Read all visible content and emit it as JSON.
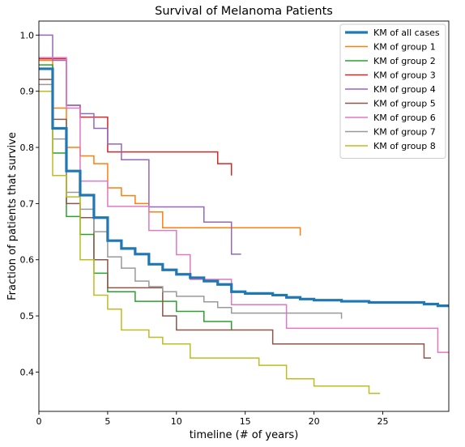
{
  "chart_data": {
    "type": "line",
    "step": true,
    "title": "Survival of Melanoma Patients",
    "xlabel": "timeline (# of years)",
    "ylabel": "Fraction of patients that survive",
    "xlim": [
      0,
      29.8
    ],
    "ylim": [
      0.33,
      1.025
    ],
    "xticks": [
      0,
      5,
      10,
      15,
      20,
      25
    ],
    "yticks": [
      0.4,
      0.5,
      0.6,
      0.7,
      0.8,
      0.9,
      1.0
    ],
    "xtick_labels": [
      "0",
      "5",
      "10",
      "15",
      "20",
      "25"
    ],
    "ytick_labels": [
      "0.4",
      "0.5",
      "0.6",
      "0.7",
      "0.8",
      "0.9",
      "1.0"
    ],
    "grid": false,
    "legend_position": "top-right",
    "series": [
      {
        "name": "KM of all cases",
        "color": "#1f77b4",
        "emphasis": true,
        "x": [
          0,
          1,
          2,
          3,
          4,
          5,
          6,
          7,
          8,
          9,
          10,
          11,
          12,
          13,
          14,
          15,
          17,
          18,
          19,
          20,
          22,
          24,
          28,
          29,
          29.8
        ],
        "y": [
          0.94,
          0.834,
          0.758,
          0.715,
          0.675,
          0.634,
          0.62,
          0.61,
          0.592,
          0.582,
          0.574,
          0.568,
          0.562,
          0.556,
          0.543,
          0.54,
          0.537,
          0.533,
          0.53,
          0.528,
          0.526,
          0.524,
          0.521,
          0.518,
          0.518
        ]
      },
      {
        "name": "KM of group 1",
        "color": "#ff7f0e",
        "x": [
          0,
          1,
          2,
          3,
          4,
          5,
          6,
          7,
          8,
          9,
          19
        ],
        "y": [
          0.955,
          0.87,
          0.8,
          0.785,
          0.771,
          0.728,
          0.714,
          0.7,
          0.685,
          0.657,
          0.643
        ]
      },
      {
        "name": "KM of group 2",
        "color": "#2ca02c",
        "x": [
          0,
          1,
          2,
          3,
          4,
          5,
          7,
          9,
          10,
          12,
          14
        ],
        "y": [
          0.947,
          0.79,
          0.677,
          0.645,
          0.576,
          0.543,
          0.526,
          0.526,
          0.508,
          0.49,
          0.474
        ]
      },
      {
        "name": "KM of group 3",
        "color": "#d62728",
        "x": [
          0,
          2,
          3,
          5,
          13,
          14
        ],
        "y": [
          0.958,
          0.875,
          0.854,
          0.792,
          0.771,
          0.75
        ]
      },
      {
        "name": "KM of group 4",
        "color": "#9467bd",
        "x": [
          0,
          1,
          2,
          3,
          4,
          5,
          6,
          8,
          12,
          14,
          14.7
        ],
        "y": [
          1.0,
          0.955,
          0.875,
          0.86,
          0.834,
          0.806,
          0.778,
          0.694,
          0.667,
          0.61,
          0.61
        ]
      },
      {
        "name": "KM of group 5",
        "color": "#8c564b",
        "x": [
          0,
          1,
          2,
          3,
          4,
          5,
          9,
          10,
          17,
          28,
          28.5
        ],
        "y": [
          0.921,
          0.85,
          0.7,
          0.675,
          0.6,
          0.55,
          0.5,
          0.475,
          0.45,
          0.425,
          0.425
        ]
      },
      {
        "name": "KM of group 6",
        "color": "#e377c2",
        "x": [
          0,
          2,
          3,
          5,
          8,
          10,
          11,
          14,
          18,
          29,
          29.8
        ],
        "y": [
          0.96,
          0.87,
          0.74,
          0.695,
          0.652,
          0.609,
          0.565,
          0.52,
          0.478,
          0.435,
          0.435
        ]
      },
      {
        "name": "KM of group 7",
        "color": "#999999",
        "x": [
          0,
          1,
          2,
          3,
          4,
          5,
          6,
          7,
          8,
          9,
          10,
          12,
          13,
          14,
          22
        ],
        "y": [
          0.912,
          0.815,
          0.72,
          0.69,
          0.65,
          0.605,
          0.585,
          0.562,
          0.552,
          0.543,
          0.535,
          0.525,
          0.515,
          0.505,
          0.495
        ]
      },
      {
        "name": "KM of group 8",
        "color": "#bcbd22",
        "x": [
          0,
          1,
          2,
          3,
          4,
          5,
          6,
          8,
          9,
          11,
          16,
          18,
          20,
          24,
          24.8
        ],
        "y": [
          0.9,
          0.75,
          0.712,
          0.6,
          0.537,
          0.512,
          0.475,
          0.462,
          0.45,
          0.425,
          0.412,
          0.388,
          0.375,
          0.362,
          0.362
        ]
      }
    ]
  }
}
